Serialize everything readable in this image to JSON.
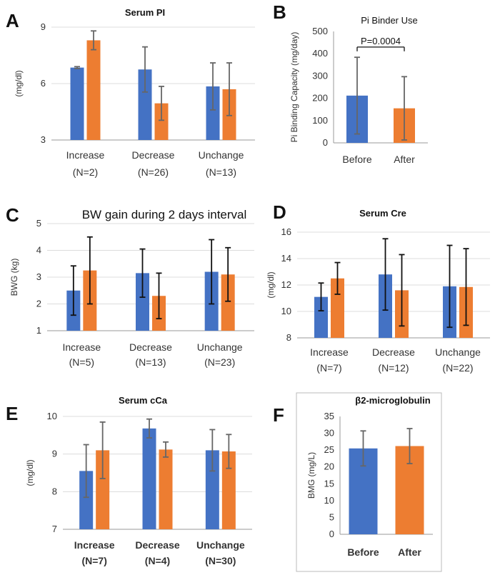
{
  "colors": {
    "blue": "#4472C4",
    "orange": "#ED7D31",
    "err_bw": "#111111",
    "err_default": "#666666"
  },
  "chart_data": [
    {
      "letter": "A",
      "type": "bar",
      "title": "Serum PI",
      "categories": [
        "Increase",
        "Decrease",
        "Unchange"
      ],
      "subcategories": [
        "(N=2)",
        "(N=26)",
        "(N=13)"
      ],
      "ylabel": "(mg/dl)",
      "ylim": [
        3,
        9
      ],
      "yticks": [
        3,
        6,
        9
      ],
      "grid": true,
      "series": [
        {
          "values": [
            6.85,
            6.75,
            5.85
          ],
          "err": [
            0.05,
            1.2,
            1.25
          ]
        },
        {
          "values": [
            8.3,
            4.95,
            5.7
          ],
          "err": [
            0.5,
            0.9,
            1.4
          ]
        }
      ]
    },
    {
      "letter": "B",
      "type": "bar",
      "title": "Pi Binder Use",
      "categories": [
        "Before",
        "After"
      ],
      "ylabel": "Pi Binding Capacity (mg/day)",
      "ylim": [
        0,
        500
      ],
      "yticks": [
        0,
        100,
        200,
        300,
        400,
        500
      ],
      "grid": false,
      "series": [
        {
          "values": [
            212,
            155
          ],
          "err": [
            172,
            142
          ]
        }
      ],
      "annotation": {
        "text": "P=0.0004",
        "from": 0,
        "to": 1,
        "y": 430
      }
    },
    {
      "letter": "C",
      "type": "bar",
      "title": "BW gain during  2 days interval",
      "categories": [
        "Increase",
        "Decrease",
        "Unchange"
      ],
      "subcategories": [
        "(N=5)",
        "(N=13)",
        "(N=23)"
      ],
      "ylabel": "BWG (kg)",
      "ylim": [
        1,
        5
      ],
      "yticks": [
        1,
        2,
        3,
        4,
        5
      ],
      "grid": true,
      "series": [
        {
          "values": [
            2.5,
            3.15,
            3.2
          ],
          "err": [
            0.92,
            0.9,
            1.2
          ]
        },
        {
          "values": [
            3.25,
            2.3,
            3.1
          ],
          "err": [
            1.25,
            0.85,
            1.0
          ]
        }
      ]
    },
    {
      "letter": "D",
      "type": "bar",
      "title": "Serum Cre",
      "categories": [
        "Increase",
        "Decrease",
        "Unchange"
      ],
      "subcategories": [
        "(N=7)",
        "(N=12)",
        "(N=22)"
      ],
      "ylabel": "(mg/dl)",
      "ylim": [
        8,
        16
      ],
      "yticks": [
        8,
        10,
        12,
        14,
        16
      ],
      "grid": true,
      "series": [
        {
          "values": [
            11.1,
            12.8,
            11.9
          ],
          "err": [
            1.05,
            2.7,
            3.1
          ]
        },
        {
          "values": [
            12.5,
            11.6,
            11.85
          ],
          "err": [
            1.2,
            2.7,
            2.9
          ]
        }
      ]
    },
    {
      "letter": "E",
      "type": "bar",
      "title": "Serum cCa",
      "categories": [
        "Increase",
        "Decrease",
        "Unchange"
      ],
      "subcategories": [
        "(N=7)",
        "(N=4)",
        "(N=30)"
      ],
      "ylabel": "(mg/dl)",
      "ylim": [
        7,
        10
      ],
      "yticks": [
        7,
        8,
        9,
        10
      ],
      "grid": true,
      "series": [
        {
          "values": [
            8.55,
            9.68,
            9.1
          ],
          "err": [
            0.7,
            0.25,
            0.55
          ]
        },
        {
          "values": [
            9.1,
            9.12,
            9.07
          ],
          "err": [
            0.75,
            0.2,
            0.45
          ]
        }
      ]
    },
    {
      "letter": "F",
      "type": "bar",
      "title": "β2-microglobulin",
      "categories": [
        "Before",
        "After"
      ],
      "ylabel": "BMG (mg/L)",
      "ylim": [
        0,
        35
      ],
      "yticks": [
        0,
        5,
        10,
        15,
        20,
        25,
        30,
        35
      ],
      "grid": false,
      "series": [
        {
          "values": [
            25.5,
            26.2
          ],
          "err": [
            5.2,
            5.2
          ]
        }
      ]
    }
  ]
}
